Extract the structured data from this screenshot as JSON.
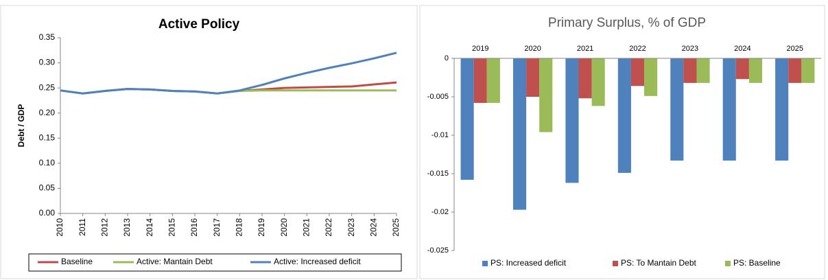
{
  "chart_data": [
    {
      "type": "line",
      "title": "Active Policy",
      "y_label": "Debt / GDP",
      "x": [
        2010,
        2011,
        2012,
        2013,
        2014,
        2015,
        2016,
        2017,
        2018,
        2019,
        2020,
        2021,
        2022,
        2023,
        2024,
        2025
      ],
      "xlim": [
        2010,
        2025
      ],
      "xticks": [
        2010,
        2011,
        2012,
        2013,
        2014,
        2015,
        2016,
        2017,
        2018,
        2019,
        2020,
        2021,
        2022,
        2023,
        2024,
        2025
      ],
      "ylim": [
        0,
        0.35
      ],
      "yticks": [
        {
          "value": 0,
          "label": "0.00"
        },
        {
          "value": 0.05,
          "label": "0.05"
        },
        {
          "value": 0.1,
          "label": "0.10"
        },
        {
          "value": 0.15,
          "label": "0.15"
        },
        {
          "value": 0.2,
          "label": "0.20"
        },
        {
          "value": 0.25,
          "label": "0.25"
        },
        {
          "value": 0.3,
          "label": "0.30"
        },
        {
          "value": 0.35,
          "label": "0.35"
        }
      ],
      "grid": false,
      "legend": "bottom",
      "series": [
        {
          "name": "Baseline",
          "color": "#be4b48",
          "values": [
            0.245,
            0.239,
            0.244,
            0.248,
            0.247,
            0.244,
            0.243,
            0.239,
            0.244,
            0.247,
            0.25,
            0.251,
            0.252,
            0.253,
            0.257,
            0.261
          ]
        },
        {
          "name": "Active: Mantain Debt",
          "color": "#9bbb59",
          "values": [
            0.245,
            0.239,
            0.244,
            0.248,
            0.247,
            0.244,
            0.243,
            0.239,
            0.244,
            0.245,
            0.245,
            0.245,
            0.245,
            0.245,
            0.245,
            0.245
          ]
        },
        {
          "name": "Active: Increased deficit",
          "color": "#4f81bd",
          "values": [
            0.245,
            0.239,
            0.244,
            0.248,
            0.247,
            0.244,
            0.243,
            0.239,
            0.245,
            0.256,
            0.269,
            0.28,
            0.29,
            0.299,
            0.309,
            0.32
          ]
        }
      ]
    },
    {
      "type": "bar",
      "title": "Primary Surplus, % of GDP",
      "categories": [
        "2019",
        "2020",
        "2021",
        "2022",
        "2023",
        "2024",
        "2025"
      ],
      "ylim": [
        -0.025,
        0
      ],
      "yticks": [
        0,
        -0.005,
        -0.01,
        -0.015,
        -0.02,
        -0.025
      ],
      "grid": false,
      "legend": "bottom",
      "series": [
        {
          "name": "PS:  Increased deficit",
          "color": "#4f81bd",
          "values": [
            -0.0158,
            -0.0197,
            -0.0162,
            -0.0149,
            -0.0133,
            -0.0133,
            -0.0133
          ]
        },
        {
          "name": "PS: To Mantain Debt",
          "color": "#c0504d",
          "values": [
            -0.0058,
            -0.005,
            -0.0052,
            -0.0036,
            -0.0032,
            -0.0027,
            -0.0032
          ]
        },
        {
          "name": "PS: Baseline",
          "color": "#9bbb59",
          "values": [
            -0.0058,
            -0.0096,
            -0.0062,
            -0.0049,
            -0.0032,
            -0.0032,
            -0.0032
          ]
        }
      ]
    }
  ]
}
